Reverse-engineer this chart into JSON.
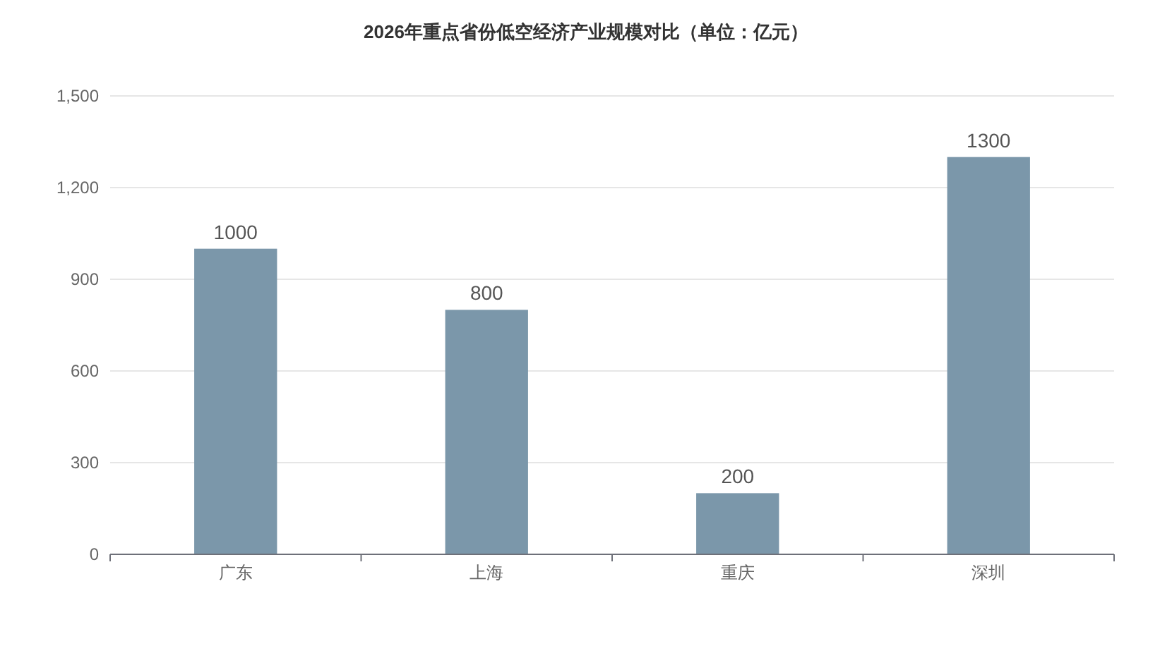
{
  "chart_data": {
    "type": "bar",
    "title": "2026年重点省份低空经济产业规模对比（单位：亿元）",
    "categories": [
      "广东",
      "上海",
      "重庆",
      "深圳"
    ],
    "values": [
      1000,
      800,
      200,
      1300
    ],
    "color": "#7b97aa",
    "ylim": [
      0,
      1500
    ],
    "yticks": [
      0,
      {
        "value": 300,
        "label": "300"
      },
      {
        "value": 600,
        "label": "600"
      },
      {
        "value": 900,
        "label": "900"
      },
      {
        "value": 1200,
        "label": "1,200"
      },
      {
        "value": 1500,
        "label": "1,500"
      }
    ],
    "grid": "y",
    "data_labels": true
  }
}
